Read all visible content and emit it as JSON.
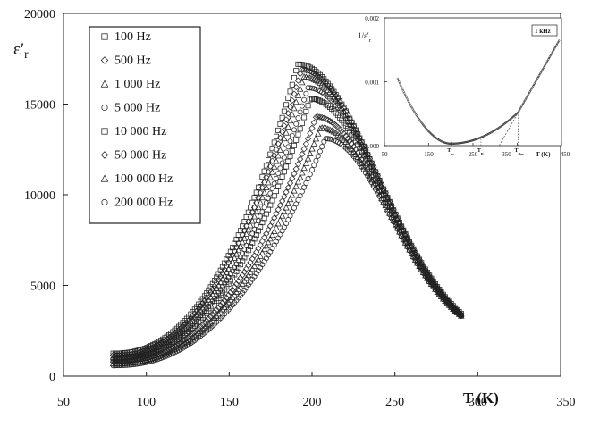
{
  "chart_data": [
    {
      "type": "scatter",
      "xlabel": "T (K)",
      "ylabel": "ε′r",
      "xlim": [
        50,
        350
      ],
      "ylim": [
        0,
        20000
      ],
      "x_ticks": [
        "50",
        "100",
        "150",
        "200",
        "250",
        "300",
        "350"
      ],
      "y_ticks": [
        "0",
        "5000",
        "10000",
        "15000",
        "20000"
      ],
      "grid": false,
      "legend": "top-left",
      "x_range": [
        80,
        290
      ],
      "series": [
        {
          "name": "100 Hz",
          "marker": "square",
          "peak_T": 191.5,
          "peak_value": 17200,
          "low_T_value": 1250,
          "end_value": 3450
        },
        {
          "name": "500 Hz",
          "marker": "diamond",
          "peak_T": 193.5,
          "peak_value": 16900,
          "low_T_value": 1150,
          "end_value": 3420
        },
        {
          "name": "1 000 Hz",
          "marker": "triangle",
          "peak_T": 195.0,
          "peak_value": 16500,
          "low_T_value": 1050,
          "end_value": 3400
        },
        {
          "name": "5 000 Hz",
          "marker": "circle",
          "peak_T": 197.5,
          "peak_value": 15900,
          "low_T_value": 950,
          "end_value": 3380
        },
        {
          "name": "10 000 Hz",
          "marker": "square",
          "peak_T": 199.0,
          "peak_value": 15300,
          "low_T_value": 880,
          "end_value": 3360
        },
        {
          "name": "50 000 Hz",
          "marker": "diamond",
          "peak_T": 202.5,
          "peak_value": 14300,
          "low_T_value": 780,
          "end_value": 3340
        },
        {
          "name": "100 000 Hz",
          "marker": "triangle",
          "peak_T": 205.0,
          "peak_value": 13700,
          "low_T_value": 680,
          "end_value": 3320
        },
        {
          "name": "200 000 Hz",
          "marker": "circle",
          "peak_T": 208.0,
          "peak_value": 13100,
          "low_T_value": 580,
          "end_value": 3300
        }
      ]
    },
    {
      "type": "scatter",
      "xlabel": "T (K)",
      "ylabel": "1/ε′r",
      "xlim": [
        50,
        450
      ],
      "ylim": [
        0,
        0.002
      ],
      "x_ticks": [
        "50",
        "150",
        "250",
        "350",
        "450"
      ],
      "y_ticks": [
        "0.000",
        "0.001",
        "0.002"
      ],
      "legend_label": "1 kHz",
      "annotations": [
        {
          "label": "Tm",
          "T": 200
        },
        {
          "label": "TB",
          "T": 268
        },
        {
          "label": "Tdev",
          "T": 352
        }
      ],
      "curve": {
        "T_min": 80,
        "T_max": 445,
        "value_at_80": 0.00105,
        "minimum_T": 200,
        "minimum_value": 3e-05,
        "value_at_352": 0.00052,
        "value_at_445": 0.00165
      }
    }
  ]
}
